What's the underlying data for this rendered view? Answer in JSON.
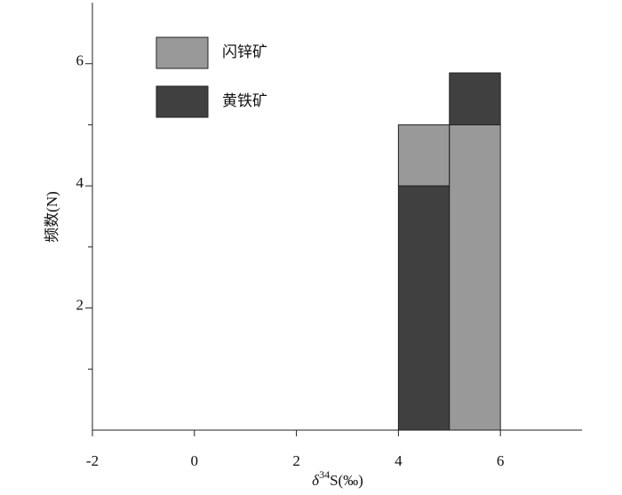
{
  "chart_data": {
    "type": "histogram",
    "ylabel": "频数(N)",
    "xlabel": {
      "symbol": "δ",
      "superscript": "34",
      "text": "S(‰)"
    },
    "bins": [
      4,
      5,
      6
    ],
    "series": [
      {
        "name": "闪锌矿",
        "color": "#999999",
        "values": [
          1,
          5
        ]
      },
      {
        "name": "黄铁矿",
        "color": "#404040",
        "values": [
          4,
          0.85
        ]
      }
    ],
    "xlim": [
      -2,
      7.6
    ],
    "xticks": [
      -2,
      0,
      2,
      4,
      6
    ],
    "ylim": [
      0,
      7
    ],
    "yticks": [
      2,
      4,
      6
    ],
    "yminorticks": [
      1,
      3,
      5
    ],
    "legend": "top-left"
  }
}
